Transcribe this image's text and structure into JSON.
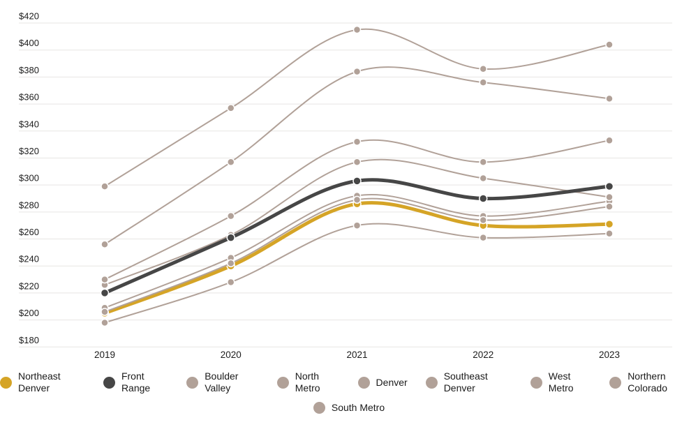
{
  "chart_data": {
    "type": "line",
    "title": "",
    "x_tick_labels": [
      "2019",
      "2020",
      "2021",
      "2022",
      "2023"
    ],
    "y_tick_labels": [
      "$180",
      "$200",
      "$220",
      "$240",
      "$260",
      "$280",
      "$300",
      "$320",
      "$340",
      "$360",
      "$380",
      "$400",
      "$420"
    ],
    "ylim": [
      180,
      420
    ],
    "y_tick_step": 20,
    "grid": "horizontal-only",
    "legend_position": "bottom",
    "colors": {
      "gold": "#d5a426",
      "dark": "#464646",
      "tan": "#b1a198",
      "gridline": "#e7e5e3",
      "axis_text": "#1c1c1c",
      "background": "#ffffff"
    },
    "series": [
      {
        "name": "Northeast Denver",
        "color": "#d5a426",
        "emphasis": true,
        "values": [
          205,
          240,
          286,
          270,
          271
        ]
      },
      {
        "name": "Front Range",
        "color": "#464646",
        "emphasis": true,
        "values": [
          220,
          261,
          303,
          290,
          299
        ]
      },
      {
        "name": "Boulder Valley",
        "color": "#b1a198",
        "emphasis": false,
        "values": [
          299,
          357,
          415,
          386,
          404
        ]
      },
      {
        "name": "North Metro",
        "color": "#b1a198",
        "emphasis": false,
        "values": [
          209,
          246,
          292,
          277,
          288
        ]
      },
      {
        "name": "Denver",
        "color": "#b1a198",
        "emphasis": false,
        "values": [
          256,
          317,
          384,
          376,
          364
        ]
      },
      {
        "name": "Southeast Denver",
        "color": "#b1a198",
        "emphasis": false,
        "values": [
          206,
          242,
          289,
          274,
          284
        ]
      },
      {
        "name": "West Metro",
        "color": "#b1a198",
        "emphasis": false,
        "values": [
          226,
          263,
          317,
          305,
          291
        ]
      },
      {
        "name": "Northern Colorado",
        "color": "#b1a198",
        "emphasis": false,
        "values": [
          198,
          228,
          270,
          261,
          264
        ]
      },
      {
        "name": "South Metro",
        "color": "#b1a198",
        "emphasis": false,
        "values": [
          230,
          277,
          332,
          317,
          333
        ]
      }
    ],
    "legend_row_sizes": [
      8,
      1
    ]
  }
}
